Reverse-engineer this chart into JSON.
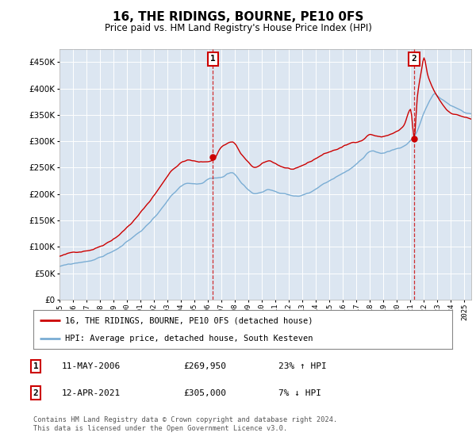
{
  "title": "16, THE RIDINGS, BOURNE, PE10 0FS",
  "subtitle": "Price paid vs. HM Land Registry's House Price Index (HPI)",
  "ytick_values": [
    0,
    50000,
    100000,
    150000,
    200000,
    250000,
    300000,
    350000,
    400000,
    450000
  ],
  "ylim": [
    0,
    475000
  ],
  "xlim_start": 1995.0,
  "xlim_end": 2025.5,
  "bg_color": "#dce6f1",
  "red_color": "#cc0000",
  "blue_color": "#7aadd4",
  "marker1_x": 2006.37,
  "marker1_y": 269950,
  "marker2_x": 2021.28,
  "marker2_y": 305000,
  "legend_label_red": "16, THE RIDINGS, BOURNE, PE10 0FS (detached house)",
  "legend_label_blue": "HPI: Average price, detached house, South Kesteven",
  "table_row1": [
    "1",
    "11-MAY-2006",
    "£269,950",
    "23% ↑ HPI"
  ],
  "table_row2": [
    "2",
    "12-APR-2021",
    "£305,000",
    "7% ↓ HPI"
  ],
  "footer": "Contains HM Land Registry data © Crown copyright and database right 2024.\nThis data is licensed under the Open Government Licence v3.0.",
  "xtick_years": [
    1995,
    1996,
    1997,
    1998,
    1999,
    2000,
    2001,
    2002,
    2003,
    2004,
    2005,
    2006,
    2007,
    2008,
    2009,
    2010,
    2011,
    2012,
    2013,
    2014,
    2015,
    2016,
    2017,
    2018,
    2019,
    2020,
    2021,
    2022,
    2023,
    2024,
    2025
  ]
}
